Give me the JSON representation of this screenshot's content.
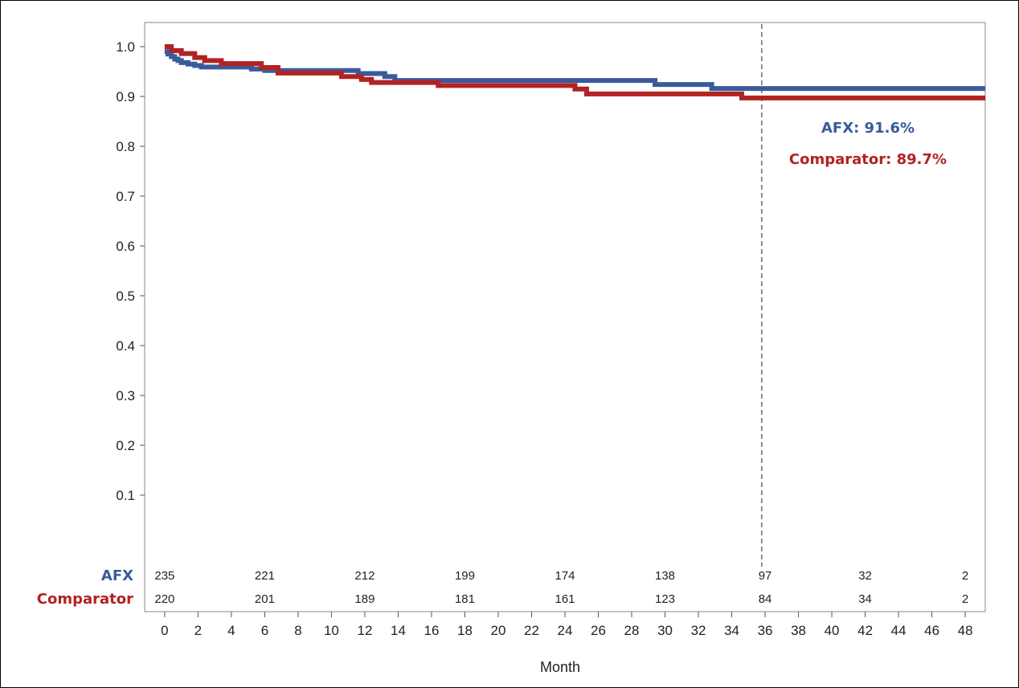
{
  "chart_data": {
    "type": "line",
    "title": "",
    "xlabel": "Month",
    "ylabel": "",
    "xlim": [
      -1.2,
      49.2
    ],
    "ylim": [
      0,
      1.02
    ],
    "x_ticks": [
      0,
      2,
      4,
      6,
      8,
      10,
      12,
      14,
      16,
      18,
      20,
      22,
      24,
      26,
      28,
      30,
      32,
      34,
      36,
      38,
      40,
      42,
      44,
      46,
      48
    ],
    "y_ticks": [
      0.1,
      0.2,
      0.3,
      0.4,
      0.5,
      0.6,
      0.7,
      0.8,
      0.9,
      1.0
    ],
    "y_tick_labels": [
      "0.1",
      "0.2",
      "0.3",
      "0.4",
      "0.5",
      "0.6",
      "0.7",
      "0.8",
      "0.9",
      "1.0"
    ],
    "grid": false,
    "reference_line_x": 35.8,
    "colors": {
      "afx": "#3a5a9c",
      "comparator": "#b22222"
    },
    "series": [
      {
        "name": "AFX",
        "color": "#3a5a9c",
        "step": true,
        "x": [
          0,
          0.2,
          0.4,
          0.6,
          0.8,
          1.0,
          1.4,
          1.8,
          2.2,
          5.2,
          6.0,
          11.6,
          13.2,
          13.8,
          29.4,
          32.8,
          49.2
        ],
        "y": [
          0.99,
          0.985,
          0.98,
          0.975,
          0.972,
          0.968,
          0.965,
          0.962,
          0.959,
          0.955,
          0.952,
          0.946,
          0.94,
          0.932,
          0.924,
          0.916,
          0.916
        ]
      },
      {
        "name": "Comparator",
        "color": "#b22222",
        "step": true,
        "x": [
          0,
          0.4,
          1.0,
          1.8,
          2.4,
          3.4,
          5.8,
          6.8,
          10.6,
          11.8,
          12.4,
          16.4,
          24.6,
          25.3,
          34.6,
          49.2
        ],
        "y": [
          1.0,
          0.992,
          0.986,
          0.978,
          0.972,
          0.966,
          0.958,
          0.947,
          0.94,
          0.934,
          0.928,
          0.922,
          0.915,
          0.905,
          0.897,
          0.897
        ]
      }
    ],
    "annotations": [
      {
        "text": "AFX: 91.6%",
        "color": "#3a5a9c"
      },
      {
        "text": "Comparator: 89.7%",
        "color": "#b22222"
      }
    ],
    "number_at_risk": {
      "x": [
        0,
        6,
        12,
        18,
        24,
        30,
        36,
        42,
        48
      ],
      "rows": [
        {
          "name": "AFX",
          "color": "#3a5a9c",
          "values": [
            "235",
            "221",
            "212",
            "199",
            "174",
            "138",
            "97",
            "32",
            "2"
          ]
        },
        {
          "name": "Comparator",
          "color": "#b22222",
          "values": [
            "220",
            "201",
            "189",
            "181",
            "161",
            "123",
            "84",
            "34",
            "2"
          ]
        }
      ]
    }
  }
}
